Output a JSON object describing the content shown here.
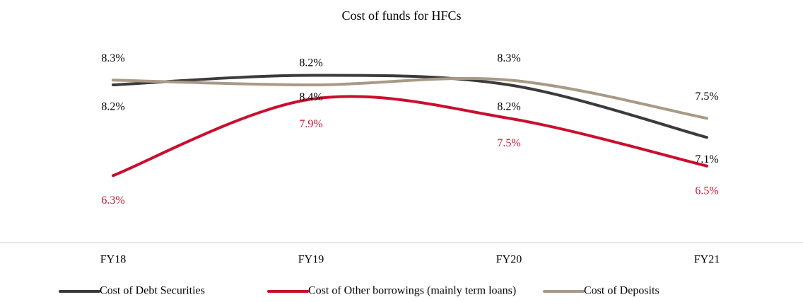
{
  "chart_data": {
    "type": "line",
    "title": "Cost of funds for HFCs",
    "categories": [
      "FY18",
      "FY19",
      "FY20",
      "FY21"
    ],
    "ylim": [
      5,
      9
    ],
    "series": [
      {
        "name": "Cost of Debt Securities",
        "color": "#3b3b3b",
        "values": [
          8.2,
          8.4,
          8.2,
          7.1
        ],
        "value_labels": [
          "8.2%",
          "8.4%",
          "8.2%",
          "7.1%"
        ]
      },
      {
        "name": "Cost of Other borrowings (mainly term loans)",
        "color": "#c8102e",
        "values": [
          6.3,
          7.9,
          7.5,
          6.5
        ],
        "value_labels": [
          "6.3%",
          "7.9%",
          "7.5%",
          "6.5%"
        ]
      },
      {
        "name": "Cost of Deposits",
        "color": "#a89a86",
        "values": [
          8.3,
          8.2,
          8.3,
          7.5
        ],
        "value_labels": [
          "8.3%",
          "8.2%",
          "8.3%",
          "7.5%"
        ]
      }
    ]
  }
}
